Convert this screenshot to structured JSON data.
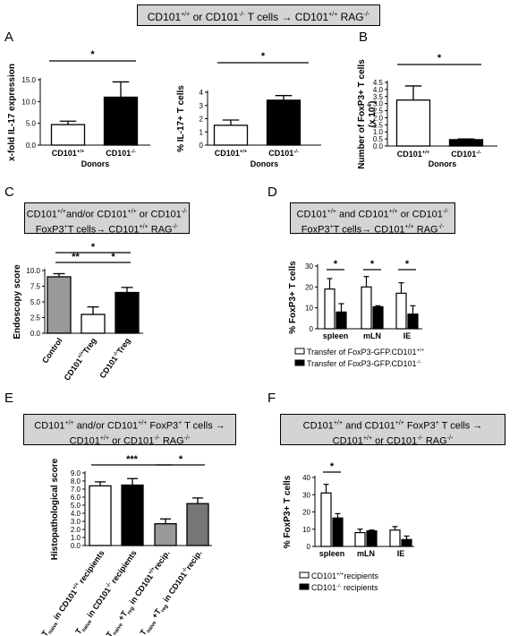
{
  "header": {
    "title_parts": [
      "CD101",
      "+/+",
      " or CD101",
      "-/-",
      " T cells → CD101",
      "+/+",
      " RAG",
      "-/-"
    ]
  },
  "panel_letters": [
    "A",
    "B",
    "C",
    "D",
    "E",
    "F"
  ],
  "boxes": {
    "C": {
      "line1": [
        "CD101",
        "+/+",
        "and/or CD101",
        "+/+",
        " or CD101",
        "-/-"
      ],
      "line2": [
        "FoxP3",
        "+",
        "T cells→ CD101",
        "+/+",
        " RAG",
        "-/-"
      ]
    },
    "D": {
      "line1": [
        "CD101",
        "+/+",
        " and  CD101",
        "+/+",
        " or CD101",
        "-/-"
      ],
      "line2": [
        "FoxP3",
        "+",
        "T cells→ CD101",
        "+/+",
        " RAG",
        "-/-"
      ]
    },
    "E": {
      "line1": [
        "CD101",
        "+/+",
        " and/or  CD101",
        "+/+",
        " FoxP3",
        "+",
        " T cells →"
      ],
      "line2": [
        "CD101",
        "+/+",
        "  or CD101",
        "-/-",
        "  RAG",
        "-/-"
      ]
    },
    "F": {
      "line1": [
        "CD101",
        "+/+",
        "  and    CD101",
        "+/+",
        " FoxP3",
        "+",
        " T cells →"
      ],
      "line2": [
        "CD101",
        "+/+",
        "  or CD101",
        "-/-",
        "  RAG",
        "-/-"
      ]
    }
  },
  "chart_data": [
    {
      "id": "A1",
      "type": "bar",
      "ylabel": "x-fold IL-17 expression",
      "xlabel": "Donors",
      "yticks": [
        "0.0",
        "5.0",
        "10.0",
        "15.0"
      ],
      "ylim": [
        0,
        15
      ],
      "categories": [
        [
          "CD101",
          "+/+"
        ],
        [
          "CD101",
          "-/-"
        ]
      ],
      "values": [
        4.7,
        11.0
      ],
      "errors": [
        0.8,
        3.5
      ],
      "colors": [
        "#ffffff",
        "#000000"
      ],
      "sig": [
        {
          "label": "*",
          "from": 0,
          "to": 1
        }
      ]
    },
    {
      "id": "A2",
      "type": "bar",
      "ylabel": "% IL-17+ T cells",
      "xlabel": "Donors",
      "yticks": [
        "0",
        "1",
        "2",
        "3",
        "4"
      ],
      "ylim": [
        0,
        4
      ],
      "categories": [
        [
          "CD101",
          "+/+"
        ],
        [
          "CD101",
          "-/-"
        ]
      ],
      "values": [
        1.5,
        3.4
      ],
      "errors": [
        0.4,
        0.35
      ],
      "colors": [
        "#ffffff",
        "#000000"
      ],
      "sig": [
        {
          "label": "*",
          "from": 0,
          "to": 1
        }
      ]
    },
    {
      "id": "B",
      "type": "bar",
      "ylabel": [
        "Number of FoxP3+ T cells",
        "(x 10",
        "4",
        ")"
      ],
      "xlabel": "Donors",
      "yticks": [
        "0.0",
        "0.5",
        "1.0",
        "1.5",
        "2.0",
        "2.5",
        "3.0",
        "3.5",
        "4.0",
        "4.5"
      ],
      "ylim": [
        0,
        4.5
      ],
      "categories": [
        [
          "CD101",
          "+/+"
        ],
        [
          "CD101",
          "-/-"
        ]
      ],
      "values": [
        3.25,
        0.45
      ],
      "errors": [
        1.0,
        0.05
      ],
      "colors": [
        "#ffffff",
        "#000000"
      ],
      "sig": [
        {
          "label": "*",
          "from": 0,
          "to": 1
        }
      ]
    },
    {
      "id": "C",
      "type": "bar",
      "ylabel": "Endoscopy score",
      "xlabel": "",
      "yticks": [
        "0.0",
        "2.5",
        "5.0",
        "7.5",
        "10.0"
      ],
      "ylim": [
        0,
        10
      ],
      "categories": [
        [
          "Control",
          ""
        ],
        [
          "CD101",
          "+/+",
          "Treg"
        ],
        [
          "CD101",
          "-/-",
          "Treg"
        ]
      ],
      "values": [
        9.0,
        3.0,
        6.5
      ],
      "errors": [
        0.5,
        1.2,
        0.8
      ],
      "colors": [
        "#999999",
        "#ffffff",
        "#000000"
      ],
      "sig": [
        {
          "label": "*",
          "from": 0,
          "to": 2
        },
        {
          "label": "**",
          "from": 0,
          "to": 1
        },
        {
          "label": "*",
          "from": 1,
          "to": 2
        }
      ]
    },
    {
      "id": "D",
      "type": "bar",
      "grouped": true,
      "ylabel": "% FoxP3+ T cells",
      "xlabel": "",
      "yticks": [
        "0",
        "10",
        "20",
        "30"
      ],
      "ylim": [
        0,
        30
      ],
      "categories": [
        "spleen",
        "mLN",
        "IE"
      ],
      "series": [
        {
          "name": [
            "Transfer of FoxP3-GFP.CD101",
            "+/+"
          ],
          "values": [
            19,
            20,
            17
          ],
          "errors": [
            5,
            5,
            5
          ],
          "color": "#ffffff"
        },
        {
          "name": [
            "Transfer of FoxP3-GFP.CD101",
            "-/-"
          ],
          "values": [
            8,
            10.5,
            7
          ],
          "errors": [
            4,
            0.5,
            4
          ],
          "color": "#000000"
        }
      ],
      "sig": [
        {
          "label": "*",
          "group": 0
        },
        {
          "label": "*",
          "group": 1
        },
        {
          "label": "*",
          "group": 2
        }
      ]
    },
    {
      "id": "E",
      "type": "bar",
      "ylabel": "Histopathological score",
      "xlabel": "",
      "yticks": [
        "0.0",
        "1.0",
        "2.0",
        "3.0",
        "4.0",
        "5.0",
        "6.0",
        "7.0",
        "8.0",
        "9.0"
      ],
      "ylim": [
        0,
        9
      ],
      "categories": [
        [
          "T",
          "naive",
          " in CD101",
          "+/+",
          " recipients"
        ],
        [
          "T",
          "naive",
          " in CD101",
          "-/-",
          " recipients"
        ],
        [
          "T",
          "naive",
          " +T",
          "reg",
          " in CD101",
          "+/+",
          "recip."
        ],
        [
          "T",
          "naive",
          " +T",
          "reg",
          " in CD101",
          "-/-",
          "recip."
        ]
      ],
      "values": [
        7.4,
        7.5,
        2.7,
        5.2
      ],
      "errors": [
        0.5,
        0.8,
        0.6,
        0.7
      ],
      "colors": [
        "#ffffff",
        "#000000",
        "#999999",
        "#777777"
      ],
      "sig": [
        {
          "label": "***",
          "from": 0,
          "to": 2
        },
        {
          "label": "*",
          "from": 2,
          "to": 3
        }
      ]
    },
    {
      "id": "F",
      "type": "bar",
      "grouped": true,
      "ylabel": "% FoxP3+ T cells",
      "xlabel": "",
      "yticks": [
        "0",
        "10",
        "20",
        "30",
        "40"
      ],
      "ylim": [
        0,
        40
      ],
      "categories": [
        "spleen",
        "mLN",
        "IE"
      ],
      "series": [
        {
          "name": [
            "CD101",
            "+/+",
            "recipients"
          ],
          "values": [
            31,
            8,
            9.5
          ],
          "errors": [
            5,
            2,
            2
          ],
          "color": "#ffffff"
        },
        {
          "name": [
            "CD101",
            "-/-",
            " recipients"
          ],
          "values": [
            16.5,
            9,
            4
          ],
          "errors": [
            2.5,
            0.5,
            2
          ],
          "color": "#000000"
        }
      ],
      "sig": [
        {
          "label": "*",
          "group": 0
        }
      ]
    }
  ]
}
